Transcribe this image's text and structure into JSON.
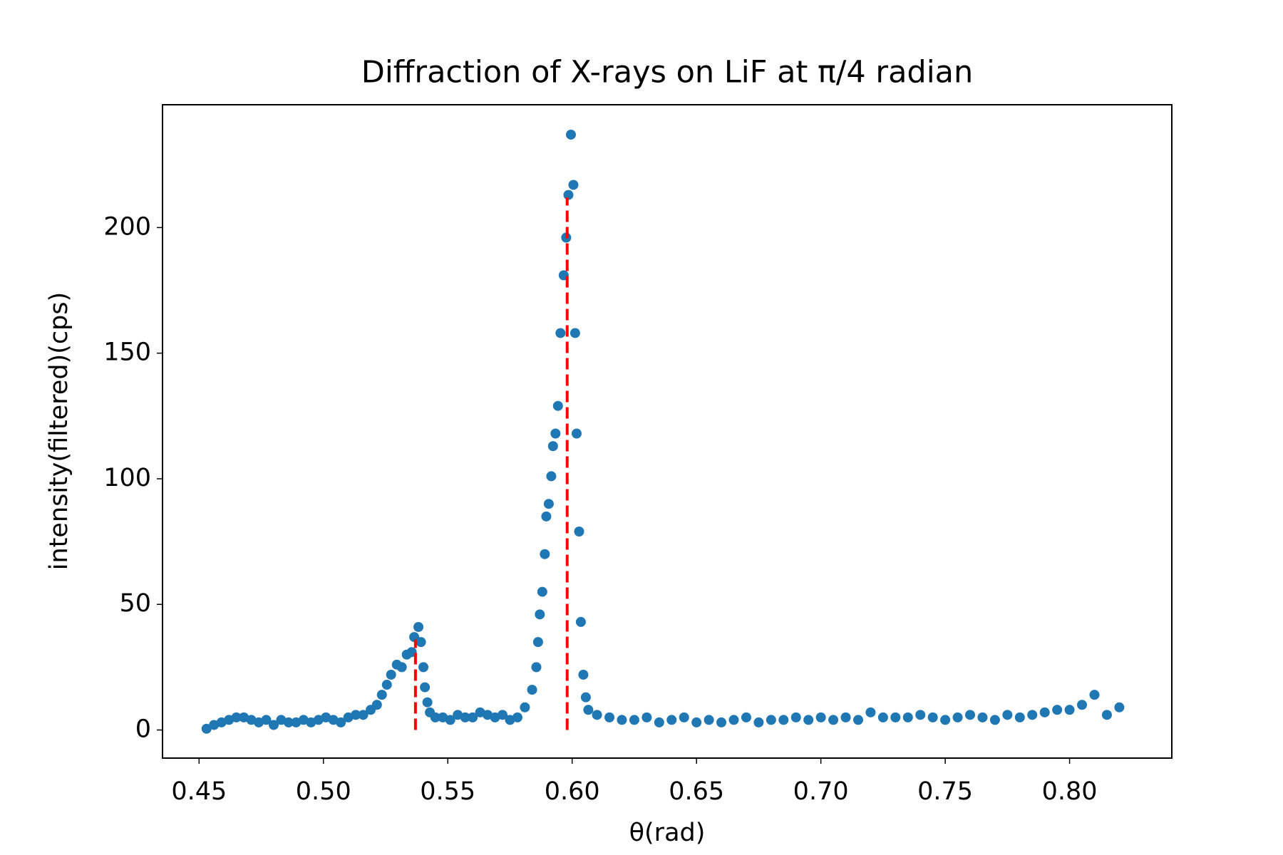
{
  "chart_data": {
    "type": "scatter",
    "title": "Diffraction of X-rays on LiF at π/4 radian",
    "x_label": "θ(rad)",
    "y_label": "intensity(filtered)(cps)",
    "xlim": [
      0.4353,
      0.8411
    ],
    "ylim": [
      -11.2,
      248.9
    ],
    "xticks": [
      {
        "value": 0.45,
        "label": "0.45"
      },
      {
        "value": 0.5,
        "label": "0.50"
      },
      {
        "value": 0.55,
        "label": "0.55"
      },
      {
        "value": 0.6,
        "label": "0.60"
      },
      {
        "value": 0.65,
        "label": "0.65"
      },
      {
        "value": 0.7,
        "label": "0.70"
      },
      {
        "value": 0.75,
        "label": "0.75"
      },
      {
        "value": 0.8,
        "label": "0.80"
      }
    ],
    "yticks": [
      0,
      50,
      100,
      150,
      200
    ],
    "color": "#1f77b4",
    "x": [
      0.453,
      0.456,
      0.459,
      0.462,
      0.465,
      0.468,
      0.471,
      0.474,
      0.477,
      0.48,
      0.483,
      0.486,
      0.489,
      0.492,
      0.495,
      0.498,
      0.501,
      0.504,
      0.507,
      0.51,
      0.513,
      0.516,
      0.519,
      0.5215,
      0.5235,
      0.5255,
      0.5272,
      0.5295,
      0.5315,
      0.5335,
      0.5355,
      0.5365,
      0.5382,
      0.5392,
      0.5402,
      0.5408,
      0.5418,
      0.5428,
      0.545,
      0.548,
      0.551,
      0.554,
      0.557,
      0.56,
      0.563,
      0.566,
      0.569,
      0.572,
      0.575,
      0.578,
      0.581,
      0.5839,
      0.5856,
      0.5863,
      0.587,
      0.588,
      0.589,
      0.5896,
      0.5906,
      0.5916,
      0.5923,
      0.5933,
      0.5943,
      0.5953,
      0.5966,
      0.5976,
      0.5985,
      0.5995,
      0.6005,
      0.6012,
      0.6018,
      0.6028,
      0.6035,
      0.6045,
      0.6055,
      0.6065,
      0.61,
      0.615,
      0.62,
      0.625,
      0.63,
      0.635,
      0.64,
      0.645,
      0.65,
      0.655,
      0.66,
      0.665,
      0.67,
      0.675,
      0.68,
      0.685,
      0.69,
      0.695,
      0.7,
      0.705,
      0.71,
      0.715,
      0.72,
      0.725,
      0.73,
      0.735,
      0.74,
      0.745,
      0.75,
      0.755,
      0.76,
      0.765,
      0.77,
      0.775,
      0.78,
      0.785,
      0.79,
      0.795,
      0.8,
      0.805,
      0.81,
      0.815,
      0.82
    ],
    "values": [
      0.5,
      2,
      3,
      4,
      5,
      5,
      4,
      3,
      4,
      2,
      4,
      3,
      3,
      4,
      3,
      4,
      5,
      4,
      3,
      5,
      6,
      6,
      8,
      10,
      14,
      18,
      22,
      26,
      25,
      30,
      31,
      37,
      41,
      35,
      25,
      17,
      11,
      7,
      5,
      5,
      4,
      6,
      5,
      5,
      7,
      6,
      5,
      6,
      4,
      5,
      9,
      16,
      25,
      35,
      46,
      55,
      70,
      85,
      90,
      101,
      113,
      118,
      129,
      158,
      181,
      196,
      213,
      237,
      217,
      158,
      118,
      79,
      43,
      22,
      13,
      8,
      6,
      5,
      4,
      4,
      5,
      3,
      4,
      5,
      3,
      4,
      3,
      4,
      5,
      3,
      4,
      4,
      5,
      4,
      5,
      4,
      5,
      4,
      7,
      5,
      5,
      5,
      6,
      5,
      4,
      5,
      6,
      5,
      4,
      6,
      5,
      6,
      7,
      8,
      8,
      10,
      14,
      6,
      9
    ],
    "peak_lines": {
      "color": "#ff0000",
      "x": [
        0.537,
        0.598
      ],
      "ymax": [
        36,
        212
      ]
    }
  }
}
